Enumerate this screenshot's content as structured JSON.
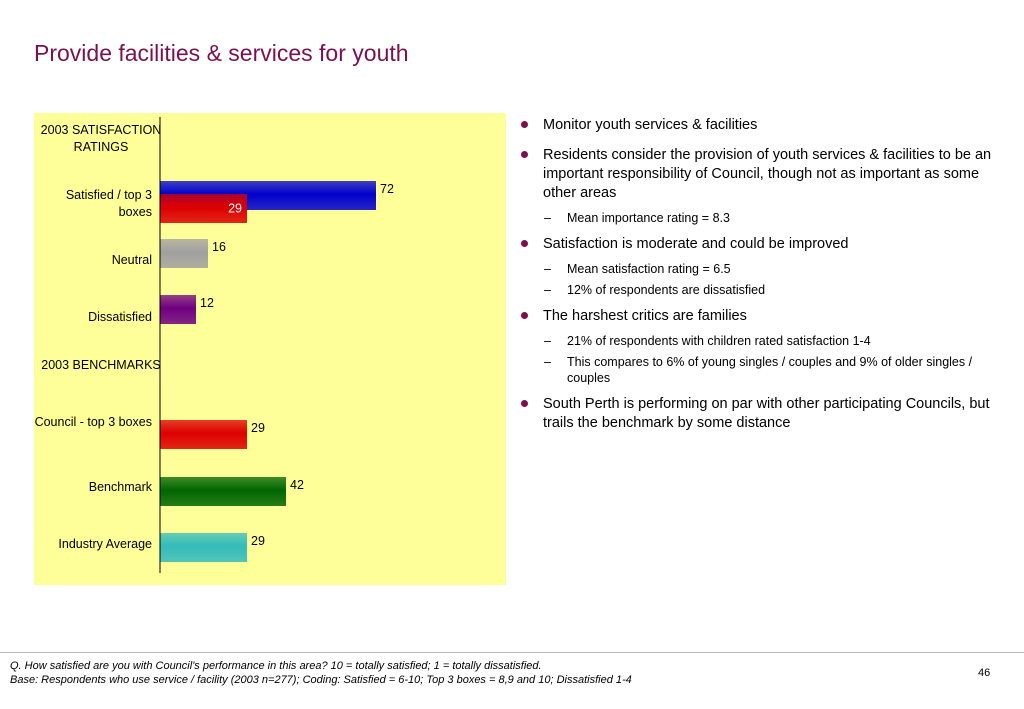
{
  "page": {
    "title": "Provide facilities & services for youth",
    "page_number": "46",
    "footer": {
      "question": "Q. How satisfied are you with Council's performance in this area?  10 = totally satisfied; 1 = totally dissatisfied.",
      "base": "Base: Respondents who use service / facility (2003 n=277);  Coding: Satisfied = 6-10; Top 3 boxes = 8,9 and 10; Dissatisfied 1-4"
    }
  },
  "chart_data": {
    "type": "bar",
    "orientation": "horizontal",
    "groups": [
      {
        "label": "2003 SATISFACTION RATINGS"
      },
      {
        "label": "2003 BENCHMARKS"
      }
    ],
    "categories": [
      "Satisfied / top 3 boxes",
      "Neutral",
      "Dissatisfied",
      "Council - top 3 boxes",
      "Benchmark",
      "Industry Average"
    ],
    "bars": [
      {
        "category": "Satisfied / top 3 boxes",
        "value": 72,
        "color": "#0000cc"
      },
      {
        "category": "Satisfied / top 3 boxes",
        "value": 29,
        "color": "#dd0000",
        "label_inside": true
      },
      {
        "category": "Neutral",
        "value": 16,
        "color": "#a0a0a0"
      },
      {
        "category": "Dissatisfied",
        "value": 12,
        "color": "#6e0080"
      },
      {
        "category": "Council - top 3 boxes",
        "value": 29,
        "color": "#dd0000"
      },
      {
        "category": "Benchmark",
        "value": 42,
        "color": "#006600"
      },
      {
        "category": "Industry Average",
        "value": 29,
        "color": "#33bbbb"
      }
    ],
    "xlim": [
      0,
      100
    ],
    "axis_labels_visible": false,
    "grid": false,
    "background": "#ffff99"
  },
  "bullets": [
    {
      "text": "Monitor youth services & facilities",
      "subs": []
    },
    {
      "text": "Residents consider the provision of youth services & facilities to be an important responsibility of Council, though not as important as some other areas",
      "subs": [
        "Mean importance rating = 8.3"
      ]
    },
    {
      "text": "Satisfaction is moderate and could be improved",
      "subs": [
        "Mean satisfaction rating = 6.5",
        "12% of respondents are dissatisfied"
      ]
    },
    {
      "text": "The harshest critics are families",
      "subs": [
        "21% of respondents with children rated satisfaction 1-4",
        "This compares to 6% of young singles / couples and 9% of older singles / couples"
      ]
    },
    {
      "text": "South Perth is performing on par with other participating Councils, but trails the benchmark by some distance",
      "subs": []
    }
  ],
  "colors": {
    "title": "#7a1050",
    "bullet": "#7a1050"
  }
}
